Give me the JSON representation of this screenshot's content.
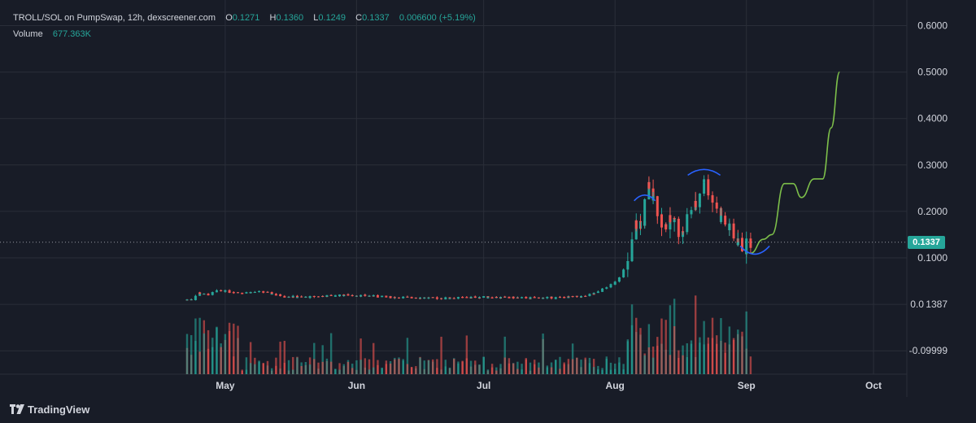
{
  "legend": {
    "symbol": "TROLL/SOL on PumpSwap, 12h, dexscreener.com",
    "open_label": "O",
    "open": "0.1271",
    "high_label": "H",
    "high": "0.1360",
    "low_label": "L",
    "low": "0.1249",
    "close_label": "C",
    "close": "0.1337",
    "change": "0.006600 (+5.19%)",
    "volume_label": "Volume",
    "volume": "677.363K"
  },
  "current_price": "0.1337",
  "branding": "TradingView",
  "colors": {
    "background": "#181c27",
    "up": "#26a69a",
    "down": "#ef5350",
    "projection": "#7dbf4a",
    "pattern_arcs": "#2962ff",
    "grid": "#2a2e39",
    "text": "#d1d4dc"
  },
  "chart_data": {
    "type": "candlestick",
    "y_axis": {
      "ticks": [
        {
          "value": 0.6,
          "label": "0.6000"
        },
        {
          "value": 0.5,
          "label": "0.5000"
        },
        {
          "value": 0.4,
          "label": "0.4000"
        },
        {
          "value": 0.3,
          "label": "0.3000"
        },
        {
          "value": 0.2,
          "label": "0.2000"
        },
        {
          "value": 0.1,
          "label": "0.1000"
        },
        {
          "value": 0.0,
          "label": "0.0 1387"
        },
        {
          "value": -0.1,
          "label": "-0.09999"
        }
      ],
      "ylim": [
        -0.14,
        0.63
      ]
    },
    "x_axis": {
      "labels": [
        "May",
        "Jun",
        "Jul",
        "Aug",
        "Sep",
        "Oct"
      ],
      "range": [
        "2025-04-20",
        "2025-10-10"
      ]
    },
    "grid": true,
    "series": [
      {
        "kind": "price_candles_12h",
        "points": [
          [
            "2025-04-22",
            0.01
          ],
          [
            "2025-04-24",
            0.012
          ],
          [
            "2025-04-25",
            0.025
          ],
          [
            "2025-04-27",
            0.02
          ],
          [
            "2025-04-30",
            0.03
          ],
          [
            "2025-05-05",
            0.025
          ],
          [
            "2025-05-10",
            0.027
          ],
          [
            "2025-05-15",
            0.018
          ],
          [
            "2025-05-20",
            0.015
          ],
          [
            "2025-05-25",
            0.018
          ],
          [
            "2025-05-30",
            0.02
          ],
          [
            "2025-06-05",
            0.018
          ],
          [
            "2025-06-10",
            0.015
          ],
          [
            "2025-06-15",
            0.015
          ],
          [
            "2025-06-20",
            0.013
          ],
          [
            "2025-06-25",
            0.014
          ],
          [
            "2025-07-01",
            0.016
          ],
          [
            "2025-07-05",
            0.015
          ],
          [
            "2025-07-10",
            0.014
          ],
          [
            "2025-07-15",
            0.014
          ],
          [
            "2025-07-20",
            0.015
          ],
          [
            "2025-07-25",
            0.017
          ],
          [
            "2025-07-28",
            0.025
          ],
          [
            "2025-07-30",
            0.035
          ],
          [
            "2025-08-01",
            0.045
          ],
          [
            "2025-08-03",
            0.065
          ],
          [
            "2025-08-05",
            0.1
          ],
          [
            "2025-08-06",
            0.17
          ],
          [
            "2025-08-08",
            0.18
          ],
          [
            "2025-08-09",
            0.25
          ],
          [
            "2025-08-11",
            0.21
          ],
          [
            "2025-08-13",
            0.17
          ],
          [
            "2025-08-15",
            0.18
          ],
          [
            "2025-08-17",
            0.15
          ],
          [
            "2025-08-19",
            0.2
          ],
          [
            "2025-08-21",
            0.22
          ],
          [
            "2025-08-22",
            0.27
          ],
          [
            "2025-08-24",
            0.235
          ],
          [
            "2025-08-26",
            0.19
          ],
          [
            "2025-08-28",
            0.165
          ],
          [
            "2025-08-30",
            0.14
          ],
          [
            "2025-09-01",
            0.12
          ],
          [
            "2025-09-02",
            0.1337
          ]
        ]
      },
      {
        "kind": "volume_bars",
        "ylim": [
          0,
          1
        ]
      },
      {
        "kind": "projection_line",
        "points": [
          [
            "2025-09-02",
            0.11
          ],
          [
            "2025-09-05",
            0.14
          ],
          [
            "2025-09-07",
            0.15
          ],
          [
            "2025-09-10",
            0.26
          ],
          [
            "2025-09-12",
            0.26
          ],
          [
            "2025-09-14",
            0.23
          ],
          [
            "2025-09-17",
            0.27
          ],
          [
            "2025-09-19",
            0.27
          ],
          [
            "2025-09-21",
            0.38
          ],
          [
            "2025-09-23",
            0.5
          ]
        ]
      }
    ],
    "annotations": [
      {
        "type": "arc_top",
        "date": "2025-08-08",
        "price": 0.23
      },
      {
        "type": "arc_top",
        "date": "2025-08-22",
        "price": 0.285
      },
      {
        "type": "arc_bottom",
        "date": "2025-09-03",
        "price": 0.115
      }
    ],
    "current_price_line": 0.1337
  }
}
